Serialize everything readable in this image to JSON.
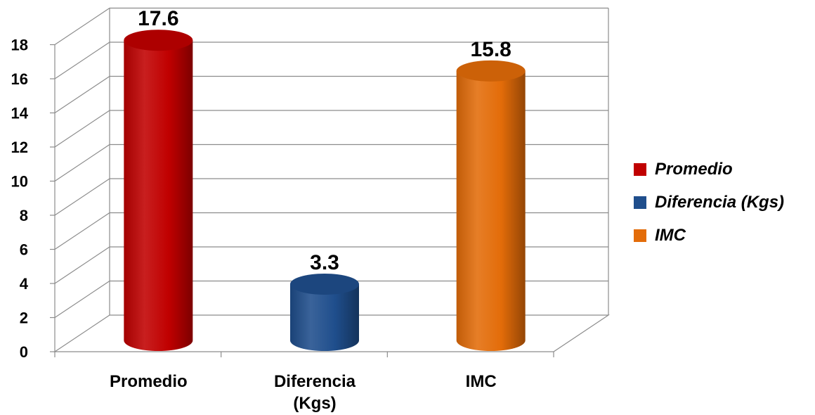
{
  "chart_data": {
    "type": "bar",
    "style": "3d-cylinder",
    "title": "",
    "xlabel": "",
    "ylabel": "",
    "categories": [
      "Promedio",
      "Diferencia (Kgs)",
      "IMC"
    ],
    "category_label_lines": [
      [
        "Promedio"
      ],
      [
        "Diferencia",
        "(Kgs)"
      ],
      [
        "IMC"
      ]
    ],
    "values": [
      17.6,
      3.3,
      15.8
    ],
    "data_labels": [
      "17.6",
      "3.3",
      "15.8"
    ],
    "colors": [
      "#c00000",
      "#1f4e8c",
      "#e36c09"
    ],
    "ylim": [
      0,
      18
    ],
    "yticks": [
      0,
      2,
      4,
      6,
      8,
      10,
      12,
      14,
      16,
      18
    ],
    "grid": true,
    "legend": {
      "placement": "right",
      "entries": [
        "Promedio",
        "Diferencia (Kgs)",
        "IMC"
      ]
    }
  }
}
